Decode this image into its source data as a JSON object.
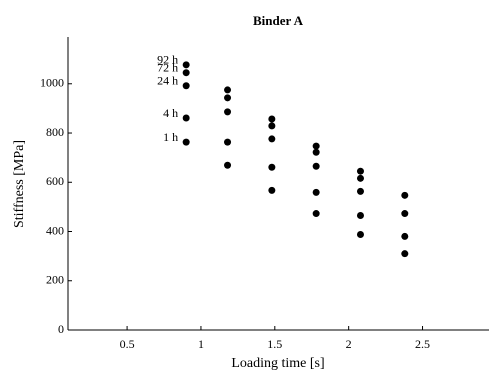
{
  "chart_data": {
    "type": "scatter",
    "title": "Binder A",
    "x_label": "Loading time [s]",
    "y_label": "Stiffness [MPa]",
    "x": [
      0.9,
      1.18,
      1.48,
      1.78,
      2.08,
      2.38
    ],
    "series": [
      {
        "name": "92 h",
        "color": "#000000",
        "values": [
          1077,
          975,
          857,
          747,
          645,
          547
        ]
      },
      {
        "name": "72 h",
        "color": "#000000",
        "values": [
          1045,
          943,
          829,
          722,
          616,
          473
        ]
      },
      {
        "name": "24 h",
        "color": "#000000",
        "values": [
          992,
          886,
          776,
          665,
          563,
          380
        ]
      },
      {
        "name": "4 h",
        "color": "#000000",
        "values": [
          861,
          763,
          661,
          559,
          465,
          310
        ]
      },
      {
        "name": "1 h",
        "color": "#000000",
        "values": [
          763,
          669,
          567,
          473,
          388,
          null
        ]
      }
    ],
    "xlim": [
      0.1,
      2.95
    ],
    "ylim": [
      0,
      1190
    ],
    "xticks": [
      0.5,
      1,
      1.5,
      2,
      2.5
    ],
    "yticks": [
      0,
      200,
      400,
      600,
      800,
      1000
    ]
  }
}
